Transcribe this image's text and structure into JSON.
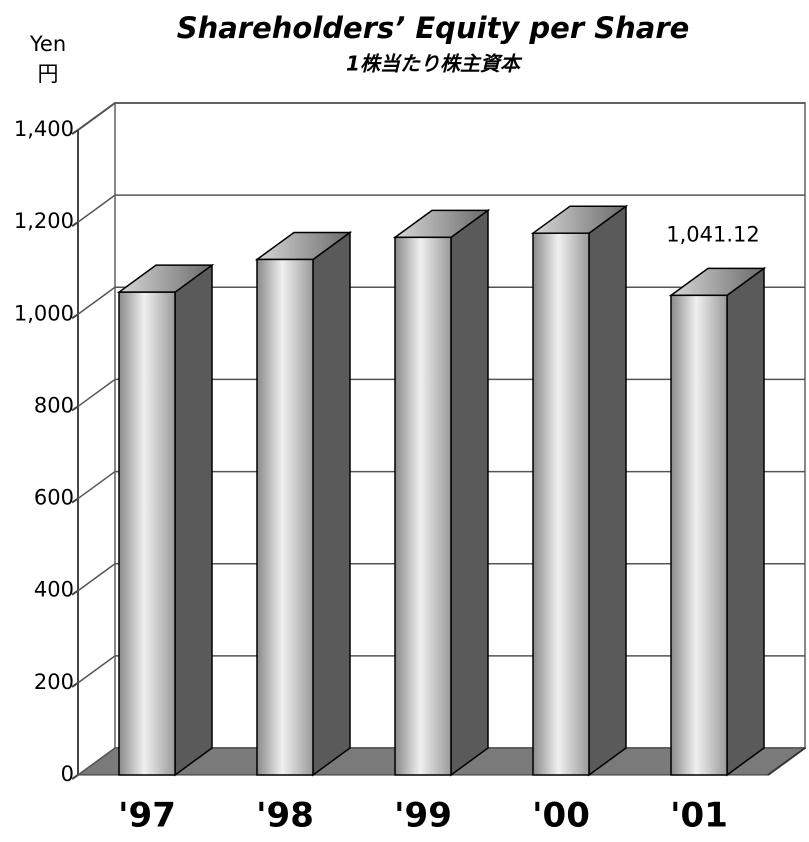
{
  "chart_data": {
    "type": "bar3d",
    "title": "Shareholders’ Equity per Share",
    "subtitle": "1株当たり株主資本",
    "y_axis_label": [
      "Yen",
      "円"
    ],
    "categories": [
      "'97",
      "'98",
      "'99",
      "'00",
      "'01"
    ],
    "values": [
      1048,
      1119,
      1167,
      1176,
      1041.12
    ],
    "value_labels": [
      null,
      null,
      null,
      null,
      "1,041.12"
    ],
    "ylim": [
      0,
      1400
    ],
    "yticks": [
      0,
      200,
      400,
      600,
      800,
      {
        "value": 1000,
        "label": "1,000"
      },
      {
        "value": 1200,
        "label": "1,200"
      },
      {
        "value": 1400,
        "label": "1,400"
      }
    ],
    "grid": true,
    "color": "#c8c8c8"
  }
}
